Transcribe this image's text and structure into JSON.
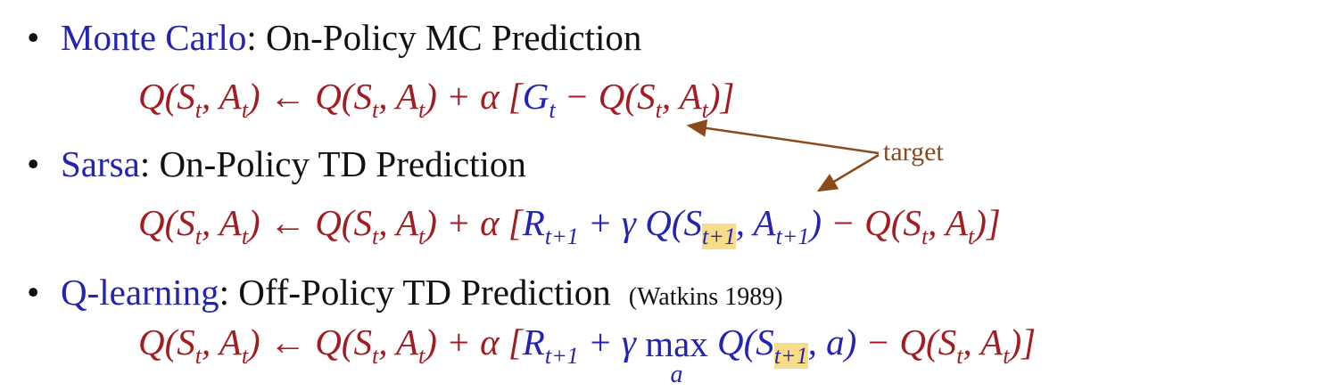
{
  "items": [
    {
      "name": "Monte Carlo",
      "text": ": On-Policy MC Prediction",
      "formula": [
        "Q(S",
        "t",
        ", A",
        "t",
        ") ← Q(S",
        "t",
        ", A",
        "t",
        ") + α [",
        "G",
        "t",
        " − Q(S",
        "t",
        ", A",
        "t",
        ")]"
      ]
    },
    {
      "name": "Sarsa",
      "text": ": On-Policy TD Prediction",
      "formula": [
        "Q(S",
        "t",
        ", A",
        "t",
        ") ← Q(S",
        "t",
        ", A",
        "t",
        ") + α [",
        "R",
        "t+1",
        " + γ Q(S",
        "t+1",
        ", A",
        "t+1",
        ")",
        " − Q(S",
        "t",
        ", A",
        "t",
        ")]"
      ]
    },
    {
      "name": "Q-learning",
      "text": ": Off-Policy TD Prediction",
      "note": "(Watkins 1989)",
      "formula": [
        "Q(S",
        "t",
        ", A",
        "t",
        ") ← Q(S",
        "t",
        ", A",
        "t",
        ") + α [",
        "R",
        "t+1",
        " + γ ",
        "max",
        "a",
        " Q(S",
        "t+1",
        ", a)",
        " − Q(S",
        "t",
        ", A",
        "t",
        ")]"
      ]
    }
  ],
  "annotation": "target"
}
